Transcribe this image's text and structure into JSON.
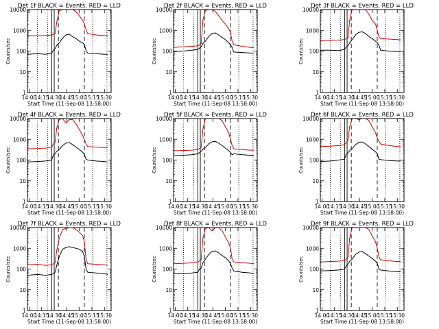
{
  "common": {
    "xlabel": "Start Time (11-Sep-08 13:58:00)",
    "ylabel": "Counts/sec",
    "x_tick_labels": [
      "14:00",
      "14:15",
      "14:30",
      "14:45",
      "15:00",
      "15:15",
      "15:30"
    ],
    "y_tick_labels": [
      "1",
      "10",
      "100",
      "1000",
      "10000"
    ],
    "colors": {
      "events": "#000000",
      "lld": "#d40000"
    }
  },
  "chart_data": [
    {
      "type": "line",
      "yscale": "log",
      "grid": false,
      "title": "Det 1f BLACK = Events, RED = LLD",
      "x_time": [
        "13:58",
        "14:10",
        "14:20",
        "14:27",
        "14:29",
        "14:31",
        "14:33",
        "14:36",
        "14:40",
        "14:44",
        "14:48",
        "14:52",
        "14:56",
        "15:00",
        "15:04",
        "15:06",
        "15:08",
        "15:10",
        "15:20",
        "15:30",
        "15:34"
      ],
      "series": [
        {
          "key": "events",
          "y": [
            70,
            75,
            70,
            80,
            110,
            130,
            190,
            250,
            420,
            600,
            650,
            500,
            400,
            300,
            250,
            200,
            110,
            80,
            75,
            70,
            70
          ]
        },
        {
          "key": "lld",
          "y": [
            550,
            550,
            560,
            600,
            650,
            700,
            2500,
            9000,
            12000,
            10000,
            12000,
            12000,
            8000,
            5000,
            3000,
            2000,
            1100,
            700,
            600,
            560,
            550
          ]
        }
      ]
    },
    {
      "type": "line",
      "yscale": "log",
      "grid": false,
      "title": "Det 2f BLACK = Events, RED = LLD",
      "x_time": [
        "13:58",
        "14:10",
        "14:20",
        "14:27",
        "14:29",
        "14:31",
        "14:33",
        "14:36",
        "14:40",
        "14:44",
        "14:48",
        "14:52",
        "14:56",
        "15:00",
        "15:04",
        "15:06",
        "15:08",
        "15:10",
        "15:20",
        "15:30",
        "15:34"
      ],
      "series": [
        {
          "key": "events",
          "y": [
            95,
            100,
            110,
            120,
            140,
            160,
            230,
            300,
            500,
            700,
            750,
            600,
            450,
            350,
            250,
            200,
            150,
            90,
            85,
            80,
            80
          ]
        },
        {
          "key": "lld",
          "y": [
            150,
            160,
            170,
            180,
            200,
            230,
            3000,
            9000,
            12000,
            11000,
            8000,
            5000,
            3000,
            2000,
            1200,
            800,
            300,
            200,
            170,
            150,
            150
          ]
        }
      ]
    },
    {
      "type": "line",
      "yscale": "log",
      "grid": false,
      "title": "Det 3f BLACK = Events, RED = LLD",
      "x_time": [
        "13:58",
        "14:10",
        "14:20",
        "14:27",
        "14:29",
        "14:31",
        "14:33",
        "14:36",
        "14:40",
        "14:44",
        "14:48",
        "14:52",
        "14:56",
        "15:00",
        "15:04",
        "15:06",
        "15:08",
        "15:10",
        "15:20",
        "15:30",
        "15:34"
      ],
      "series": [
        {
          "key": "events",
          "y": [
            110,
            110,
            105,
            120,
            160,
            180,
            250,
            350,
            600,
            800,
            850,
            700,
            500,
            400,
            300,
            250,
            200,
            110,
            100,
            95,
            95
          ]
        },
        {
          "key": "lld",
          "y": [
            320,
            330,
            340,
            360,
            400,
            450,
            3000,
            10000,
            12000,
            12000,
            12000,
            10000,
            6000,
            3000,
            2000,
            1000,
            500,
            400,
            380,
            360,
            350
          ]
        }
      ]
    },
    {
      "type": "line",
      "yscale": "log",
      "grid": false,
      "title": "Det 4f BLACK = Events, RED = LLD",
      "x_time": [
        "13:58",
        "14:10",
        "14:20",
        "14:27",
        "14:29",
        "14:31",
        "14:33",
        "14:36",
        "14:40",
        "14:44",
        "14:48",
        "14:52",
        "14:56",
        "15:00",
        "15:04",
        "15:06",
        "15:08",
        "15:10",
        "15:20",
        "15:30",
        "15:34"
      ],
      "series": [
        {
          "key": "events",
          "y": [
            80,
            85,
            90,
            100,
            180,
            200,
            260,
            320,
            500,
            650,
            700,
            550,
            420,
            320,
            240,
            190,
            110,
            100,
            90,
            85,
            80
          ]
        },
        {
          "key": "lld",
          "y": [
            350,
            360,
            380,
            420,
            600,
            700,
            3500,
            9000,
            10000,
            6000,
            9000,
            9000,
            5500,
            3000,
            1500,
            1000,
            600,
            450,
            420,
            400,
            400
          ]
        }
      ]
    },
    {
      "type": "line",
      "yscale": "log",
      "grid": false,
      "title": "Det 5f BLACK = Events, RED = LLD",
      "x_time": [
        "13:58",
        "14:10",
        "14:20",
        "14:27",
        "14:29",
        "14:31",
        "14:33",
        "14:36",
        "14:40",
        "14:44",
        "14:48",
        "14:52",
        "14:56",
        "15:00",
        "15:04",
        "15:06",
        "15:08",
        "15:10",
        "15:20",
        "15:30",
        "15:34"
      ],
      "series": [
        {
          "key": "events",
          "y": [
            160,
            170,
            180,
            200,
            230,
            260,
            330,
            400,
            600,
            750,
            800,
            650,
            500,
            380,
            280,
            230,
            180,
            200,
            180,
            170,
            165
          ]
        },
        {
          "key": "lld",
          "y": [
            280,
            290,
            300,
            320,
            360,
            400,
            3000,
            10000,
            12000,
            12000,
            12000,
            12000,
            8000,
            4000,
            2000,
            1000,
            500,
            350,
            320,
            300,
            300
          ]
        }
      ]
    },
    {
      "type": "line",
      "yscale": "log",
      "grid": false,
      "title": "Det 6f BLACK = Events, RED = LLD",
      "x_time": [
        "13:58",
        "14:10",
        "14:20",
        "14:27",
        "14:29",
        "14:31",
        "14:33",
        "14:36",
        "14:40",
        "14:44",
        "14:48",
        "14:52",
        "14:56",
        "15:00",
        "15:04",
        "15:06",
        "15:08",
        "15:10",
        "15:20",
        "15:30",
        "15:34"
      ],
      "series": [
        {
          "key": "events",
          "y": [
            85,
            90,
            100,
            110,
            200,
            230,
            280,
            350,
            550,
            700,
            750,
            600,
            450,
            330,
            250,
            200,
            110,
            105,
            95,
            90,
            90
          ]
        },
        {
          "key": "lld",
          "y": [
            450,
            470,
            500,
            550,
            700,
            900,
            4000,
            11000,
            12000,
            9000,
            12000,
            12000,
            8000,
            4000,
            2000,
            1200,
            800,
            600,
            500,
            450,
            440
          ]
        }
      ]
    },
    {
      "type": "line",
      "yscale": "log",
      "grid": false,
      "title": "Det 7f BLACK = Events, RED = LLD",
      "x_time": [
        "13:58",
        "14:10",
        "14:20",
        "14:27",
        "14:29",
        "14:31",
        "14:33",
        "14:36",
        "14:40",
        "14:44",
        "14:48",
        "14:52",
        "14:56",
        "15:00",
        "15:04",
        "15:06",
        "15:08",
        "15:10",
        "15:20",
        "15:30",
        "15:34"
      ],
      "series": [
        {
          "key": "events",
          "y": [
            50,
            55,
            50,
            55,
            60,
            70,
            150,
            400,
            900,
            1100,
            1200,
            1100,
            1000,
            900,
            700,
            400,
            100,
            70,
            65,
            60,
            55
          ]
        },
        {
          "key": "lld",
          "y": [
            160,
            170,
            150,
            160,
            180,
            200,
            800,
            3000,
            8000,
            9000,
            10000,
            10000,
            8000,
            6000,
            4000,
            2000,
            300,
            180,
            170,
            160,
            150
          ]
        }
      ]
    },
    {
      "type": "line",
      "yscale": "log",
      "grid": false,
      "title": "Det 8f BLACK = Events, RED = LLD",
      "x_time": [
        "13:58",
        "14:10",
        "14:20",
        "14:27",
        "14:29",
        "14:31",
        "14:33",
        "14:36",
        "14:40",
        "14:44",
        "14:48",
        "14:52",
        "14:56",
        "15:00",
        "15:04",
        "15:06",
        "15:08",
        "15:10",
        "15:20",
        "15:30",
        "15:34"
      ],
      "series": [
        {
          "key": "events",
          "y": [
            60,
            60,
            65,
            70,
            100,
            110,
            200,
            300,
            500,
            700,
            750,
            600,
            450,
            350,
            250,
            180,
            110,
            80,
            70,
            65,
            60
          ]
        },
        {
          "key": "lld",
          "y": [
            180,
            190,
            200,
            220,
            250,
            280,
            3000,
            9000,
            11000,
            7000,
            11000,
            12000,
            7000,
            3500,
            1800,
            1000,
            300,
            220,
            200,
            190,
            180
          ]
        }
      ]
    },
    {
      "type": "line",
      "yscale": "log",
      "grid": false,
      "title": "Det 9f BLACK = Events, RED = LLD",
      "x_time": [
        "13:58",
        "14:10",
        "14:20",
        "14:27",
        "14:29",
        "14:31",
        "14:33",
        "14:36",
        "14:40",
        "14:44",
        "14:48",
        "14:52",
        "14:56",
        "15:00",
        "15:04",
        "15:06",
        "15:08",
        "15:10",
        "15:20",
        "15:30",
        "15:34"
      ],
      "series": [
        {
          "key": "events",
          "y": [
            80,
            85,
            90,
            100,
            150,
            170,
            230,
            300,
            500,
            650,
            700,
            550,
            420,
            320,
            240,
            190,
            100,
            90,
            80,
            75,
            75
          ]
        },
        {
          "key": "lld",
          "y": [
            220,
            230,
            240,
            260,
            300,
            350,
            3000,
            10000,
            12000,
            11000,
            12000,
            12000,
            8000,
            4000,
            2000,
            1000,
            400,
            280,
            250,
            230,
            230
          ]
        }
      ]
    }
  ]
}
